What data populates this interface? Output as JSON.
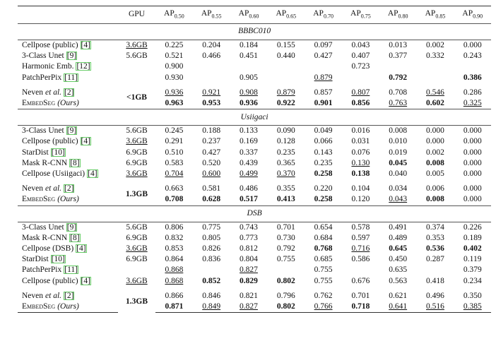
{
  "table": {
    "header": {
      "gpu": "GPU",
      "ap": [
        {
          "base": "AP",
          "sub": "0.50"
        },
        {
          "base": "AP",
          "sub": "0.55"
        },
        {
          "base": "AP",
          "sub": "0.60"
        },
        {
          "base": "AP",
          "sub": "0.65"
        },
        {
          "base": "AP",
          "sub": "0.70"
        },
        {
          "base": "AP",
          "sub": "0.75"
        },
        {
          "base": "AP",
          "sub": "0.80"
        },
        {
          "base": "AP",
          "sub": "0.85"
        },
        {
          "base": "AP",
          "sub": "0.90"
        }
      ]
    },
    "sections": [
      {
        "title": "BBBC010",
        "rows": [
          {
            "method": "Cellpose (public)",
            "ref": "[4]",
            "gpu": {
              "text": "3.6GB",
              "style": "u"
            },
            "cells": [
              "0.225",
              "0.204",
              "0.184",
              "0.155",
              "0.097",
              "0.043",
              "0.013",
              "0.002",
              "0.000"
            ]
          },
          {
            "method": "3-Class Unet",
            "ref": "[9]",
            "gpu": "5.6GB",
            "cells": [
              "0.521",
              "0.466",
              "0.451",
              "0.440",
              "0.427",
              "0.407",
              "0.377",
              "0.332",
              "0.243"
            ]
          },
          {
            "method": "Harmonic Emb.",
            "ref": "[12]",
            "gpu": null,
            "cells": [
              "0.900",
              null,
              null,
              null,
              null,
              "0.723",
              null,
              null,
              null
            ]
          },
          {
            "method": "PatchPerPix",
            "ref": "[11]",
            "gpu": null,
            "cells": [
              "0.930",
              null,
              "0.905",
              null,
              {
                "text": "0.879",
                "style": "u"
              },
              null,
              {
                "text": "0.792",
                "style": "b"
              },
              null,
              {
                "text": "0.386",
                "style": "b"
              }
            ]
          }
        ],
        "pair": {
          "gpu": "<1GB",
          "rows": [
            {
              "method": "Neven",
              "italic": "et al.",
              "ref": "[2]",
              "cells": [
                {
                  "text": "0.936",
                  "style": "u"
                },
                {
                  "text": "0.921",
                  "style": "u"
                },
                {
                  "text": "0.908",
                  "style": "u"
                },
                {
                  "text": "0.879",
                  "style": "u"
                },
                "0.857",
                {
                  "text": "0.807",
                  "style": "u"
                },
                "0.708",
                {
                  "text": "0.546",
                  "style": "u"
                },
                "0.286"
              ]
            },
            {
              "method": "EmbedSeg",
              "italic": "(Ours)",
              "smallcaps": true,
              "cells": [
                {
                  "text": "0.963",
                  "style": "b"
                },
                {
                  "text": "0.953",
                  "style": "b"
                },
                {
                  "text": "0.936",
                  "style": "b"
                },
                {
                  "text": "0.922",
                  "style": "b"
                },
                {
                  "text": "0.901",
                  "style": "b"
                },
                {
                  "text": "0.856",
                  "style": "b"
                },
                {
                  "text": "0.763",
                  "style": "u"
                },
                {
                  "text": "0.602",
                  "style": "b"
                },
                {
                  "text": "0.325",
                  "style": "u"
                }
              ]
            }
          ]
        }
      },
      {
        "title": "Usiigaci",
        "rows": [
          {
            "method": "3-Class Unet",
            "ref": "[9]",
            "gpu": "5.6GB",
            "cells": [
              "0.245",
              "0.188",
              "0.133",
              "0.090",
              "0.049",
              "0.016",
              "0.008",
              "0.000",
              "0.000"
            ]
          },
          {
            "method": "Cellpose (public)",
            "ref": "[4]",
            "gpu": {
              "text": "3.6GB",
              "style": "u"
            },
            "cells": [
              "0.291",
              "0.237",
              "0.169",
              "0.128",
              "0.066",
              "0.031",
              "0.010",
              "0.000",
              "0.000"
            ]
          },
          {
            "method": "StarDist",
            "ref": "[10]",
            "gpu": "6.9GB",
            "cells": [
              "0.510",
              "0.427",
              "0.337",
              "0.235",
              "0.143",
              "0.076",
              "0.019",
              "0.002",
              "0.000"
            ]
          },
          {
            "method": "Mask R-CNN",
            "ref": "[8]",
            "gpu": "6.9GB",
            "cells": [
              "0.583",
              "0.520",
              "0.439",
              "0.365",
              "0.235",
              {
                "text": "0.130",
                "style": "u"
              },
              {
                "text": "0.045",
                "style": "b"
              },
              {
                "text": "0.008",
                "style": "b"
              },
              "0.000"
            ]
          },
          {
            "method": "Cellpose (Usiigaci)",
            "ref": "[4]",
            "gpu": {
              "text": "3.6GB",
              "style": "u"
            },
            "cells": [
              {
                "text": "0.704",
                "style": "u"
              },
              {
                "text": "0.600",
                "style": "u"
              },
              {
                "text": "0.499",
                "style": "u"
              },
              {
                "text": "0.370",
                "style": "u"
              },
              {
                "text": "0.258",
                "style": "b"
              },
              {
                "text": "0.138",
                "style": "b"
              },
              "0.040",
              "0.005",
              "0.000"
            ]
          }
        ],
        "pair": {
          "gpu": "1.3GB",
          "rows": [
            {
              "method": "Neven",
              "italic": "et al.",
              "ref": "[2]",
              "cells": [
                "0.663",
                "0.581",
                "0.486",
                "0.355",
                "0.220",
                "0.104",
                "0.034",
                "0.006",
                "0.000"
              ]
            },
            {
              "method": "EmbedSeg",
              "italic": "(Ours)",
              "smallcaps": true,
              "cells": [
                {
                  "text": "0.708",
                  "style": "b"
                },
                {
                  "text": "0.628",
                  "style": "b"
                },
                {
                  "text": "0.517",
                  "style": "b"
                },
                {
                  "text": "0.413",
                  "style": "b"
                },
                {
                  "text": "0.258",
                  "style": "b"
                },
                "0.120",
                {
                  "text": "0.043",
                  "style": "u"
                },
                {
                  "text": "0.008",
                  "style": "b"
                },
                "0.000"
              ]
            }
          ]
        }
      },
      {
        "title": "DSB",
        "rows": [
          {
            "method": "3-Class Unet",
            "ref": "[9]",
            "gpu": "5.6GB",
            "cells": [
              "0.806",
              "0.775",
              "0.743",
              "0.701",
              "0.654",
              "0.578",
              "0.491",
              "0.374",
              "0.226"
            ]
          },
          {
            "method": "Mask R-CNN",
            "ref": "[8]",
            "gpu": "6.9GB",
            "cells": [
              "0.832",
              "0.805",
              "0.773",
              "0.730",
              "0.684",
              "0.597",
              "0.489",
              "0.353",
              "0.189"
            ]
          },
          {
            "method": "Cellpose (DSB)",
            "ref": "[4]",
            "gpu": {
              "text": "3.6GB",
              "style": "u"
            },
            "cells": [
              "0.853",
              "0.826",
              "0.812",
              "0.792",
              {
                "text": "0.768",
                "style": "b"
              },
              {
                "text": "0.716",
                "style": "u"
              },
              {
                "text": "0.645",
                "style": "b"
              },
              {
                "text": "0.536",
                "style": "b"
              },
              {
                "text": "0.402",
                "style": "b"
              }
            ]
          },
          {
            "method": "StarDist",
            "ref": "[10]",
            "gpu": "6.9GB",
            "cells": [
              "0.864",
              "0.836",
              "0.804",
              "0.755",
              "0.685",
              "0.586",
              "0.450",
              "0.287",
              "0.119"
            ]
          },
          {
            "method": "PatchPerPix",
            "ref": "[11]",
            "gpu": null,
            "cells": [
              {
                "text": "0.868",
                "style": "u"
              },
              null,
              {
                "text": "0.827",
                "style": "u"
              },
              null,
              "0.755",
              null,
              "0.635",
              null,
              "0.379"
            ]
          },
          {
            "method": "Cellpose (public)",
            "ref": "[4]",
            "gpu": {
              "text": "3.6GB",
              "style": "u"
            },
            "cells": [
              {
                "text": "0.868",
                "style": "u"
              },
              {
                "text": "0.852",
                "style": "b"
              },
              {
                "text": "0.829",
                "style": "b"
              },
              {
                "text": "0.802",
                "style": "b"
              },
              "0.755",
              "0.676",
              "0.563",
              "0.418",
              "0.234"
            ]
          }
        ],
        "pair": {
          "gpu": "1.3GB",
          "rows": [
            {
              "method": "Neven",
              "italic": "et al.",
              "ref": "[2]",
              "cells": [
                "0.866",
                "0.846",
                "0.821",
                "0.796",
                "0.762",
                "0.701",
                "0.621",
                "0.496",
                "0.350"
              ]
            },
            {
              "method": "EmbedSeg",
              "italic": "(Ours)",
              "smallcaps": true,
              "cells": [
                {
                  "text": "0.871",
                  "style": "b"
                },
                {
                  "text": "0.849",
                  "style": "u"
                },
                {
                  "text": "0.827",
                  "style": "u"
                },
                {
                  "text": "0.802",
                  "style": "b"
                },
                {
                  "text": "0.766",
                  "style": "u"
                },
                {
                  "text": "0.718",
                  "style": "b"
                },
                {
                  "text": "0.641",
                  "style": "u"
                },
                {
                  "text": "0.516",
                  "style": "u"
                },
                {
                  "text": "0.385",
                  "style": "u"
                }
              ]
            }
          ]
        }
      }
    ]
  }
}
